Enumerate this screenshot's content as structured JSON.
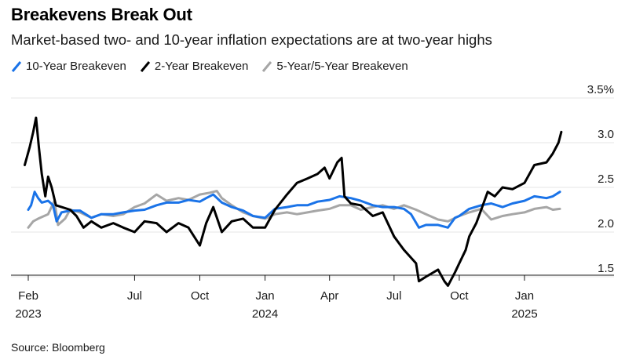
{
  "title": "Breakevens Break Out",
  "subtitle": "Market-based two- and 10-year inflation expectations are at two-year highs",
  "source": "Source: Bloomberg",
  "chart_data": {
    "type": "line",
    "y_unit": "%",
    "ylim": [
      1.4,
      3.5
    ],
    "y_ticks": [
      {
        "value": 1.5,
        "label": "1.5"
      },
      {
        "value": 2.0,
        "label": "2.0"
      },
      {
        "value": 2.5,
        "label": "2.5"
      },
      {
        "value": 3.0,
        "label": "3.0"
      },
      {
        "value": 3.5,
        "label": "3.5%"
      }
    ],
    "xlim": [
      "2023-01-20",
      "2025-03-25"
    ],
    "x_ticks": [
      {
        "date": "2023-02-01",
        "label": "Feb",
        "year": "2023"
      },
      {
        "date": "2023-07-01",
        "label": "Jul",
        "year": ""
      },
      {
        "date": "2023-10-01",
        "label": "Oct",
        "year": ""
      },
      {
        "date": "2024-01-01",
        "label": "Jan",
        "year": "2024"
      },
      {
        "date": "2024-04-01",
        "label": "Apr",
        "year": ""
      },
      {
        "date": "2024-07-01",
        "label": "Jul",
        "year": ""
      },
      {
        "date": "2024-10-01",
        "label": "Oct",
        "year": ""
      },
      {
        "date": "2025-01-01",
        "label": "Jan",
        "year": "2025"
      }
    ],
    "grid": true,
    "legend_position": "top-left",
    "series": [
      {
        "name": "10-Year Breakeven",
        "color": "#1a73e8",
        "points": [
          [
            "2023-02-01",
            2.25
          ],
          [
            "2023-02-05",
            2.3
          ],
          [
            "2023-02-10",
            2.45
          ],
          [
            "2023-02-15",
            2.38
          ],
          [
            "2023-02-20",
            2.33
          ],
          [
            "2023-03-01",
            2.35
          ],
          [
            "2023-03-08",
            2.3
          ],
          [
            "2023-03-13",
            2.12
          ],
          [
            "2023-03-20",
            2.22
          ],
          [
            "2023-04-01",
            2.24
          ],
          [
            "2023-04-15",
            2.24
          ],
          [
            "2023-05-01",
            2.16
          ],
          [
            "2023-05-15",
            2.2
          ],
          [
            "2023-06-01",
            2.2
          ],
          [
            "2023-06-15",
            2.22
          ],
          [
            "2023-07-01",
            2.24
          ],
          [
            "2023-07-15",
            2.25
          ],
          [
            "2023-08-01",
            2.3
          ],
          [
            "2023-08-15",
            2.33
          ],
          [
            "2023-09-01",
            2.33
          ],
          [
            "2023-09-15",
            2.36
          ],
          [
            "2023-10-01",
            2.34
          ],
          [
            "2023-10-10",
            2.38
          ],
          [
            "2023-10-20",
            2.42
          ],
          [
            "2023-11-01",
            2.33
          ],
          [
            "2023-11-15",
            2.28
          ],
          [
            "2023-12-01",
            2.24
          ],
          [
            "2023-12-15",
            2.18
          ],
          [
            "2024-01-01",
            2.16
          ],
          [
            "2024-01-15",
            2.26
          ],
          [
            "2024-02-01",
            2.28
          ],
          [
            "2024-02-15",
            2.3
          ],
          [
            "2024-03-01",
            2.3
          ],
          [
            "2024-03-15",
            2.34
          ],
          [
            "2024-04-01",
            2.36
          ],
          [
            "2024-04-15",
            2.4
          ],
          [
            "2024-05-01",
            2.38
          ],
          [
            "2024-05-15",
            2.35
          ],
          [
            "2024-06-01",
            2.3
          ],
          [
            "2024-06-15",
            2.28
          ],
          [
            "2024-07-01",
            2.28
          ],
          [
            "2024-07-15",
            2.26
          ],
          [
            "2024-07-25",
            2.2
          ],
          [
            "2024-08-05",
            2.05
          ],
          [
            "2024-08-15",
            2.08
          ],
          [
            "2024-09-01",
            2.08
          ],
          [
            "2024-09-15",
            2.05
          ],
          [
            "2024-09-25",
            2.16
          ],
          [
            "2024-10-01",
            2.18
          ],
          [
            "2024-10-15",
            2.26
          ],
          [
            "2024-11-01",
            2.3
          ],
          [
            "2024-11-15",
            2.32
          ],
          [
            "2024-12-01",
            2.28
          ],
          [
            "2024-12-15",
            2.32
          ],
          [
            "2025-01-01",
            2.35
          ],
          [
            "2025-01-15",
            2.4
          ],
          [
            "2025-02-01",
            2.38
          ],
          [
            "2025-02-10",
            2.4
          ],
          [
            "2025-02-20",
            2.45
          ]
        ]
      },
      {
        "name": "2-Year Breakeven",
        "color": "#000000",
        "points": [
          [
            "2023-01-27",
            2.75
          ],
          [
            "2023-02-03",
            2.95
          ],
          [
            "2023-02-08",
            3.12
          ],
          [
            "2023-02-12",
            3.28
          ],
          [
            "2023-02-16",
            2.95
          ],
          [
            "2023-02-20",
            2.65
          ],
          [
            "2023-02-25",
            2.4
          ],
          [
            "2023-03-01",
            2.62
          ],
          [
            "2023-03-06",
            2.5
          ],
          [
            "2023-03-12",
            2.3
          ],
          [
            "2023-03-20",
            2.28
          ],
          [
            "2023-04-01",
            2.25
          ],
          [
            "2023-04-10",
            2.18
          ],
          [
            "2023-04-20",
            2.05
          ],
          [
            "2023-05-01",
            2.12
          ],
          [
            "2023-05-15",
            2.05
          ],
          [
            "2023-06-01",
            2.1
          ],
          [
            "2023-06-15",
            2.05
          ],
          [
            "2023-07-01",
            2.0
          ],
          [
            "2023-07-15",
            2.12
          ],
          [
            "2023-08-01",
            2.1
          ],
          [
            "2023-08-15",
            2.0
          ],
          [
            "2023-09-01",
            2.1
          ],
          [
            "2023-09-15",
            2.05
          ],
          [
            "2023-10-01",
            1.85
          ],
          [
            "2023-10-10",
            2.1
          ],
          [
            "2023-10-20",
            2.28
          ],
          [
            "2023-11-01",
            2.0
          ],
          [
            "2023-11-15",
            2.12
          ],
          [
            "2023-12-01",
            2.15
          ],
          [
            "2023-12-15",
            2.05
          ],
          [
            "2024-01-01",
            2.05
          ],
          [
            "2024-01-15",
            2.25
          ],
          [
            "2024-02-01",
            2.42
          ],
          [
            "2024-02-15",
            2.55
          ],
          [
            "2024-03-01",
            2.6
          ],
          [
            "2024-03-15",
            2.65
          ],
          [
            "2024-03-25",
            2.72
          ],
          [
            "2024-04-01",
            2.6
          ],
          [
            "2024-04-12",
            2.78
          ],
          [
            "2024-04-18",
            2.83
          ],
          [
            "2024-04-22",
            2.4
          ],
          [
            "2024-05-01",
            2.32
          ],
          [
            "2024-05-15",
            2.3
          ],
          [
            "2024-06-01",
            2.18
          ],
          [
            "2024-06-15",
            2.22
          ],
          [
            "2024-07-01",
            1.95
          ],
          [
            "2024-07-15",
            1.8
          ],
          [
            "2024-08-01",
            1.65
          ],
          [
            "2024-08-05",
            1.45
          ],
          [
            "2024-08-15",
            1.5
          ],
          [
            "2024-09-01",
            1.58
          ],
          [
            "2024-09-10",
            1.45
          ],
          [
            "2024-09-15",
            1.4
          ],
          [
            "2024-09-25",
            1.55
          ],
          [
            "2024-10-01",
            1.65
          ],
          [
            "2024-10-10",
            1.8
          ],
          [
            "2024-10-15",
            1.95
          ],
          [
            "2024-10-25",
            2.1
          ],
          [
            "2024-11-01",
            2.25
          ],
          [
            "2024-11-10",
            2.45
          ],
          [
            "2024-11-20",
            2.4
          ],
          [
            "2024-12-01",
            2.5
          ],
          [
            "2024-12-15",
            2.48
          ],
          [
            "2025-01-01",
            2.55
          ],
          [
            "2025-01-15",
            2.75
          ],
          [
            "2025-02-01",
            2.78
          ],
          [
            "2025-02-10",
            2.88
          ],
          [
            "2025-02-18",
            3.0
          ],
          [
            "2025-02-22",
            3.12
          ]
        ]
      },
      {
        "name": "5-Year/5-Year Breakeven",
        "color": "#a6a6a6",
        "points": [
          [
            "2023-02-01",
            2.05
          ],
          [
            "2023-02-08",
            2.12
          ],
          [
            "2023-02-15",
            2.15
          ],
          [
            "2023-03-01",
            2.2
          ],
          [
            "2023-03-10",
            2.35
          ],
          [
            "2023-03-15",
            2.08
          ],
          [
            "2023-03-25",
            2.15
          ],
          [
            "2023-04-01",
            2.25
          ],
          [
            "2023-04-15",
            2.22
          ],
          [
            "2023-05-01",
            2.16
          ],
          [
            "2023-05-15",
            2.2
          ],
          [
            "2023-06-01",
            2.18
          ],
          [
            "2023-06-15",
            2.2
          ],
          [
            "2023-07-01",
            2.28
          ],
          [
            "2023-07-15",
            2.32
          ],
          [
            "2023-08-01",
            2.42
          ],
          [
            "2023-08-15",
            2.35
          ],
          [
            "2023-09-01",
            2.38
          ],
          [
            "2023-09-15",
            2.36
          ],
          [
            "2023-10-01",
            2.42
          ],
          [
            "2023-10-15",
            2.44
          ],
          [
            "2023-10-25",
            2.46
          ],
          [
            "2023-11-01",
            2.38
          ],
          [
            "2023-11-15",
            2.3
          ],
          [
            "2023-12-01",
            2.22
          ],
          [
            "2023-12-15",
            2.18
          ],
          [
            "2024-01-01",
            2.15
          ],
          [
            "2024-01-15",
            2.2
          ],
          [
            "2024-02-01",
            2.22
          ],
          [
            "2024-02-15",
            2.2
          ],
          [
            "2024-03-01",
            2.22
          ],
          [
            "2024-03-15",
            2.24
          ],
          [
            "2024-04-01",
            2.26
          ],
          [
            "2024-04-15",
            2.3
          ],
          [
            "2024-05-01",
            2.3
          ],
          [
            "2024-05-15",
            2.25
          ],
          [
            "2024-06-01",
            2.28
          ],
          [
            "2024-06-15",
            2.3
          ],
          [
            "2024-07-01",
            2.26
          ],
          [
            "2024-07-15",
            2.3
          ],
          [
            "2024-08-01",
            2.25
          ],
          [
            "2024-08-15",
            2.2
          ],
          [
            "2024-09-01",
            2.14
          ],
          [
            "2024-09-15",
            2.12
          ],
          [
            "2024-10-01",
            2.18
          ],
          [
            "2024-10-15",
            2.22
          ],
          [
            "2024-11-01",
            2.26
          ],
          [
            "2024-11-15",
            2.14
          ],
          [
            "2024-12-01",
            2.18
          ],
          [
            "2024-12-15",
            2.2
          ],
          [
            "2025-01-01",
            2.22
          ],
          [
            "2025-01-15",
            2.26
          ],
          [
            "2025-02-01",
            2.28
          ],
          [
            "2025-02-10",
            2.25
          ],
          [
            "2025-02-20",
            2.26
          ]
        ]
      }
    ]
  }
}
